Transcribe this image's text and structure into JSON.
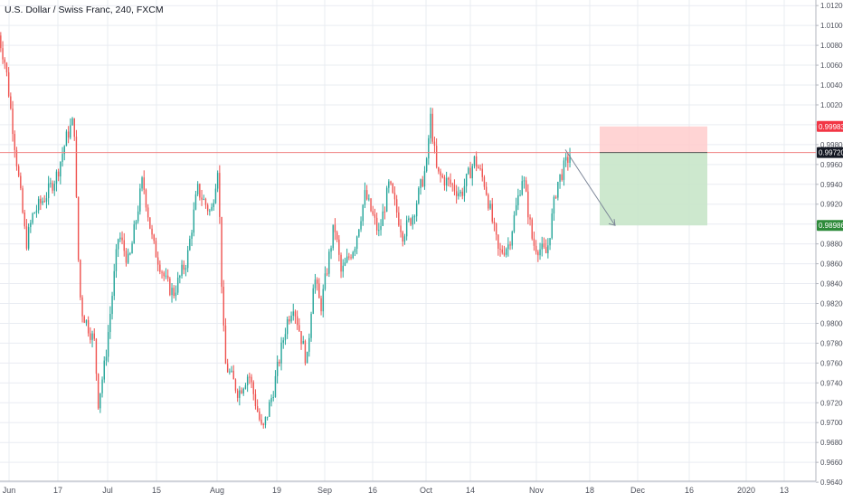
{
  "header": {
    "title": "U.S. Dollar / Swiss Franc, 240, FXCM"
  },
  "colors": {
    "up": "#26a69a",
    "down": "#ef5350",
    "grid": "#e9ecf2",
    "price_line": "#f08080",
    "stop_zone": "#ffcccc",
    "target_zone": "#c8e6c9",
    "stop_label_bg": "#f23645",
    "target_label_bg": "#2e8b3a",
    "current_label_bg": "#131722",
    "arrow": "#7b8597"
  },
  "chart_data": {
    "type": "candlestick",
    "title": "U.S. Dollar / Swiss Franc, 240, FXCM",
    "ylim": [
      0.9641,
      1.0122
    ],
    "y_ticks": [
      "0.96400",
      "0.96600",
      "0.96800",
      "0.97000",
      "0.97200",
      "0.97400",
      "0.97600",
      "0.97800",
      "0.98000",
      "0.98200",
      "0.98400",
      "0.98600",
      "0.98800",
      "0.99000",
      "0.99200",
      "0.99400",
      "0.99600",
      "0.99800",
      "1.00000",
      "1.00200",
      "1.00400",
      "1.00600",
      "1.00800",
      "1.01000",
      "1.01200"
    ],
    "x_ticks": [
      "Jun",
      "17",
      "Jul",
      "15",
      "Aug",
      "19",
      "Sep",
      "16",
      "Oct",
      "14",
      "Nov",
      "18",
      "Dec",
      "16",
      "2020",
      "13"
    ],
    "grid": true,
    "price_path": [
      {
        "date": "2019-05-28",
        "close": 1.009
      },
      {
        "date": "2019-05-30",
        "close": 1.006
      },
      {
        "date": "2019-06-03",
        "close": 0.994
      },
      {
        "date": "2019-06-05",
        "close": 0.988
      },
      {
        "date": "2019-06-07",
        "close": 0.991
      },
      {
        "date": "2019-06-11",
        "close": 0.993
      },
      {
        "date": "2019-06-14",
        "close": 0.995
      },
      {
        "date": "2019-06-17",
        "close": 0.999
      },
      {
        "date": "2019-06-19",
        "close": 1.0005
      },
      {
        "date": "2019-06-20",
        "close": 0.988
      },
      {
        "date": "2019-06-21",
        "close": 0.9815
      },
      {
        "date": "2019-06-25",
        "close": 0.978
      },
      {
        "date": "2019-06-26",
        "close": 0.972
      },
      {
        "date": "2019-06-28",
        "close": 0.976
      },
      {
        "date": "2019-07-02",
        "close": 0.989
      },
      {
        "date": "2019-07-05",
        "close": 0.986
      },
      {
        "date": "2019-07-09",
        "close": 0.9945
      },
      {
        "date": "2019-07-12",
        "close": 0.988
      },
      {
        "date": "2019-07-16",
        "close": 0.984
      },
      {
        "date": "2019-07-18",
        "close": 0.983
      },
      {
        "date": "2019-07-22",
        "close": 0.9865
      },
      {
        "date": "2019-07-25",
        "close": 0.9935
      },
      {
        "date": "2019-07-29",
        "close": 0.991
      },
      {
        "date": "2019-07-31",
        "close": 0.996
      },
      {
        "date": "2019-08-01",
        "close": 0.985
      },
      {
        "date": "2019-08-02",
        "close": 0.976
      },
      {
        "date": "2019-08-06",
        "close": 0.973
      },
      {
        "date": "2019-08-09",
        "close": 0.975
      },
      {
        "date": "2019-08-13",
        "close": 0.969
      },
      {
        "date": "2019-08-16",
        "close": 0.973
      },
      {
        "date": "2019-08-20",
        "close": 0.98
      },
      {
        "date": "2019-08-22",
        "close": 0.982
      },
      {
        "date": "2019-08-26",
        "close": 0.976
      },
      {
        "date": "2019-08-28",
        "close": 0.985
      },
      {
        "date": "2019-08-30",
        "close": 0.9815
      },
      {
        "date": "2019-09-03",
        "close": 0.99
      },
      {
        "date": "2019-09-05",
        "close": 0.985
      },
      {
        "date": "2019-09-09",
        "close": 0.988
      },
      {
        "date": "2019-09-12",
        "close": 0.993
      },
      {
        "date": "2019-09-16",
        "close": 0.989
      },
      {
        "date": "2019-09-19",
        "close": 0.994
      },
      {
        "date": "2019-09-23",
        "close": 0.989
      },
      {
        "date": "2019-09-26",
        "close": 0.991
      },
      {
        "date": "2019-09-30",
        "close": 0.996
      },
      {
        "date": "2019-10-01",
        "close": 1.001
      },
      {
        "date": "2019-10-03",
        "close": 0.995
      },
      {
        "date": "2019-10-07",
        "close": 0.994
      },
      {
        "date": "2019-10-10",
        "close": 0.993
      },
      {
        "date": "2019-10-14",
        "close": 0.9965
      },
      {
        "date": "2019-10-17",
        "close": 0.994
      },
      {
        "date": "2019-10-21",
        "close": 0.987
      },
      {
        "date": "2019-10-24",
        "close": 0.988
      },
      {
        "date": "2019-10-28",
        "close": 0.995
      },
      {
        "date": "2019-10-31",
        "close": 0.988
      },
      {
        "date": "2019-11-04",
        "close": 0.987
      },
      {
        "date": "2019-11-07",
        "close": 0.994
      },
      {
        "date": "2019-11-11",
        "close": 0.9972
      }
    ],
    "annotations": {
      "current_price": "0.99720",
      "stop_loss": "0.99983",
      "take_profit": "0.98986"
    }
  }
}
